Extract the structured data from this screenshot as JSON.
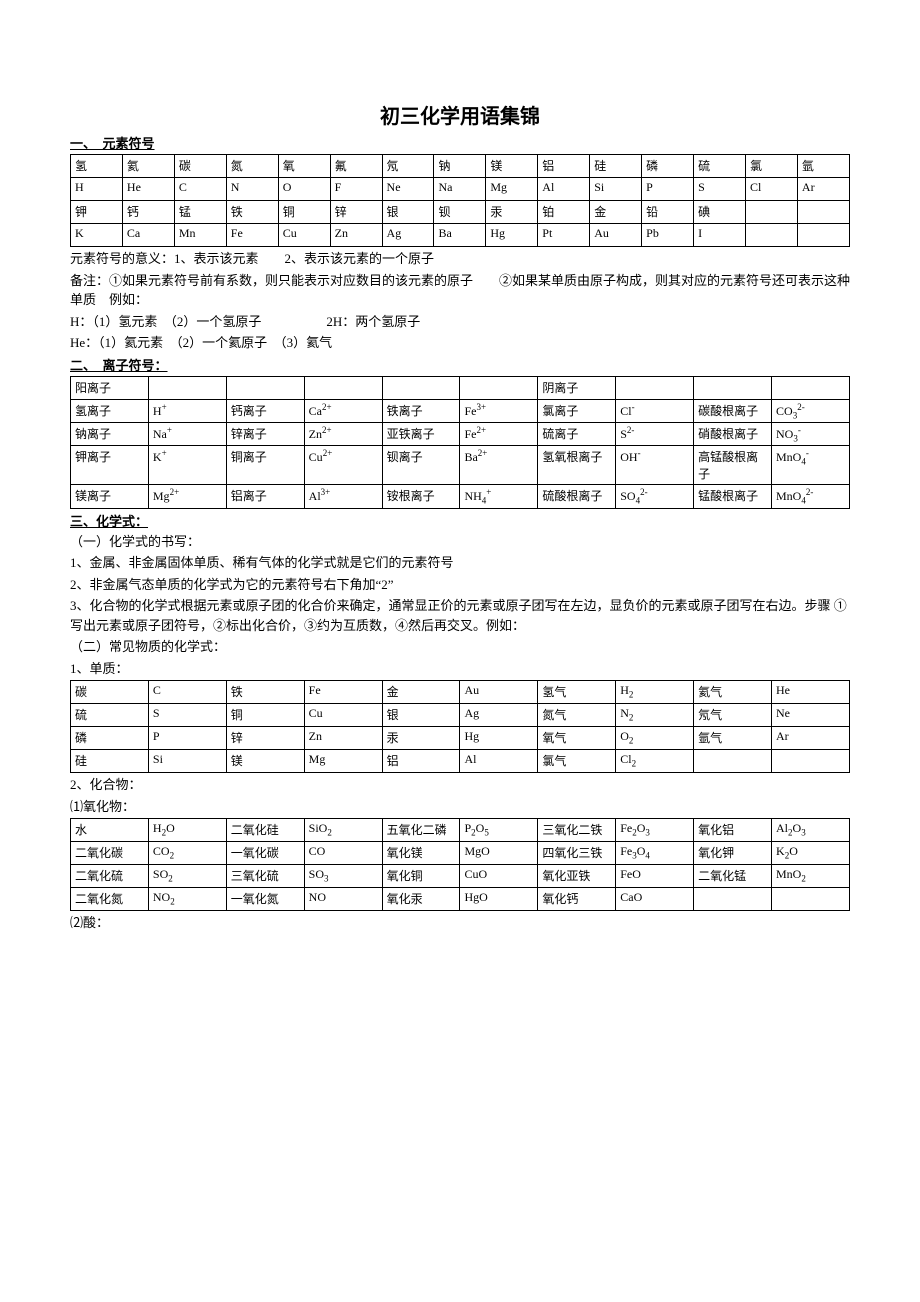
{
  "title": "初三化学用语集锦",
  "s1": {
    "heading": "一、　元素符号",
    "row1": [
      "氢",
      "氦",
      "碳",
      "氮",
      "氧",
      "氟",
      "氖",
      "钠",
      "镁",
      "铝",
      "硅",
      "磷",
      "硫",
      "氯",
      "氩"
    ],
    "row2": [
      "H",
      "He",
      "C",
      "N",
      "O",
      "F",
      "Ne",
      "Na",
      "Mg",
      "Al",
      "Si",
      "P",
      "S",
      "Cl",
      "Ar"
    ],
    "row3": [
      "钾",
      "钙",
      "锰",
      "铁",
      "铜",
      "锌",
      "银",
      "钡",
      "汞",
      "铂",
      "金",
      "铅",
      "碘",
      "",
      ""
    ],
    "row4": [
      "K",
      "Ca",
      "Mn",
      "Fe",
      "Cu",
      "Zn",
      "Ag",
      "Ba",
      "Hg",
      "Pt",
      "Au",
      "Pb",
      "I",
      "",
      ""
    ],
    "p1": "元素符号的意义：1、表示该元素　　2、表示该元素的一个原子",
    "p2": "备注：①如果元素符号前有系数，则只能表示对应数目的该元素的原子　　②如果某单质由原子构成，则其对应的元素符号还可表示这种单质　例如：",
    "p3": "H：（1）氢元素　（2）一个氢原子　　　　　2H：两个氢原子",
    "p4": "He：（1）氦元素　（2）一个氦原子　（3）氦气"
  },
  "s2": {
    "heading": "二、　离子符号：",
    "header": [
      "阳离子",
      "",
      "",
      "",
      "",
      "",
      "阴离子",
      "",
      "",
      ""
    ],
    "rows": [
      [
        "氢离子",
        "H<sup>+</sup>",
        "钙离子",
        "Ca<sup>2+</sup>",
        "铁离子",
        "Fe<sup>3+</sup>",
        "氯离子",
        "Cl<sup>-</sup>",
        "碳酸根离子",
        "CO<sub>3</sub><sup>2-</sup>"
      ],
      [
        "钠离子",
        "Na<sup>+</sup>",
        "锌离子",
        "Zn<sup>2+</sup>",
        "亚铁离子",
        "Fe<sup>2+</sup>",
        "硫离子",
        "S<sup>2-</sup>",
        "硝酸根离子",
        "NO<sub>3</sub><sup>-</sup>"
      ],
      [
        "钾离子",
        "K<sup>+</sup>",
        "铜离子",
        "Cu<sup>2+</sup>",
        "钡离子",
        "Ba<sup>2+</sup>",
        "氢氧根离子",
        "OH<sup>-</sup>",
        "高锰酸根离子",
        "MnO<sub>4</sub><sup>-</sup>"
      ],
      [
        "镁离子",
        "Mg<sup>2+</sup>",
        "铝离子",
        "Al<sup>3+</sup>",
        "铵根离子",
        "NH<sub>4</sub><sup>+</sup>",
        "硫酸根离子",
        "SO<sub>4</sub><sup>2-</sup>",
        "锰酸根离子",
        "MnO<sub>4</sub><sup>2-</sup>"
      ]
    ]
  },
  "s3": {
    "heading": "三、化学式：",
    "sub1": "（一）化学式的书写：",
    "p1": "1、金属、非金属固体单质、稀有气体的化学式就是它们的元素符号",
    "p2": "2、非金属气态单质的化学式为它的元素符号右下角加“2”",
    "p3": "3、化合物的化学式根据元素或原子团的化合价来确定，通常显正价的元素或原子团写在左边，显负价的元素或原子团写在右边。步骤 ①写出元素或原子团符号，②标出化合价，③约为互质数，④然后再交叉。例如：",
    "sub2": "（二）常见物质的化学式：",
    "t1h": "1、单质：",
    "t1": [
      [
        "碳",
        "C",
        "铁",
        "Fe",
        "金",
        "Au",
        "氢气",
        "H<sub>2</sub>",
        "氦气",
        "He"
      ],
      [
        "硫",
        "S",
        "铜",
        "Cu",
        "银",
        "Ag",
        "氮气",
        "N<sub>2</sub>",
        "氖气",
        "Ne"
      ],
      [
        "磷",
        "P",
        "锌",
        "Zn",
        "汞",
        "Hg",
        "氧气",
        "O<sub>2</sub>",
        "氩气",
        "Ar"
      ],
      [
        "硅",
        "Si",
        "镁",
        "Mg",
        "铝",
        "Al",
        "氯气",
        "Cl<sub>2</sub>",
        "",
        ""
      ]
    ],
    "t2h": "2、化合物：",
    "t2sub": "⑴氧化物：",
    "t2": [
      [
        "水",
        "H<sub>2</sub>O",
        "二氧化硅",
        "SiO<sub>2</sub>",
        "五氧化二磷",
        "P<sub>2</sub>O<sub>5</sub>",
        "三氧化二铁",
        "Fe<sub>2</sub>O<sub>3</sub>",
        "氧化铝",
        "Al<sub>2</sub>O<sub>3</sub>"
      ],
      [
        "二氧化碳",
        "CO<sub>2</sub>",
        "一氧化碳",
        "CO",
        "氧化镁",
        "MgO",
        "四氧化三铁",
        "Fe<sub>3</sub>O<sub>4</sub>",
        "氧化钾",
        "K<sub>2</sub>O"
      ],
      [
        "二氧化硫",
        "SO<sub>2</sub>",
        "三氧化硫",
        "SO<sub>3</sub>",
        "氧化铜",
        "CuO",
        "氧化亚铁",
        "FeO",
        "二氧化锰",
        "MnO<sub>2</sub>"
      ],
      [
        "二氧化氮",
        "NO<sub>2</sub>",
        "一氧化氮",
        "NO",
        "氧化汞",
        "HgO",
        "氧化钙",
        "CaO",
        "",
        ""
      ]
    ],
    "t3h": "⑵酸："
  }
}
